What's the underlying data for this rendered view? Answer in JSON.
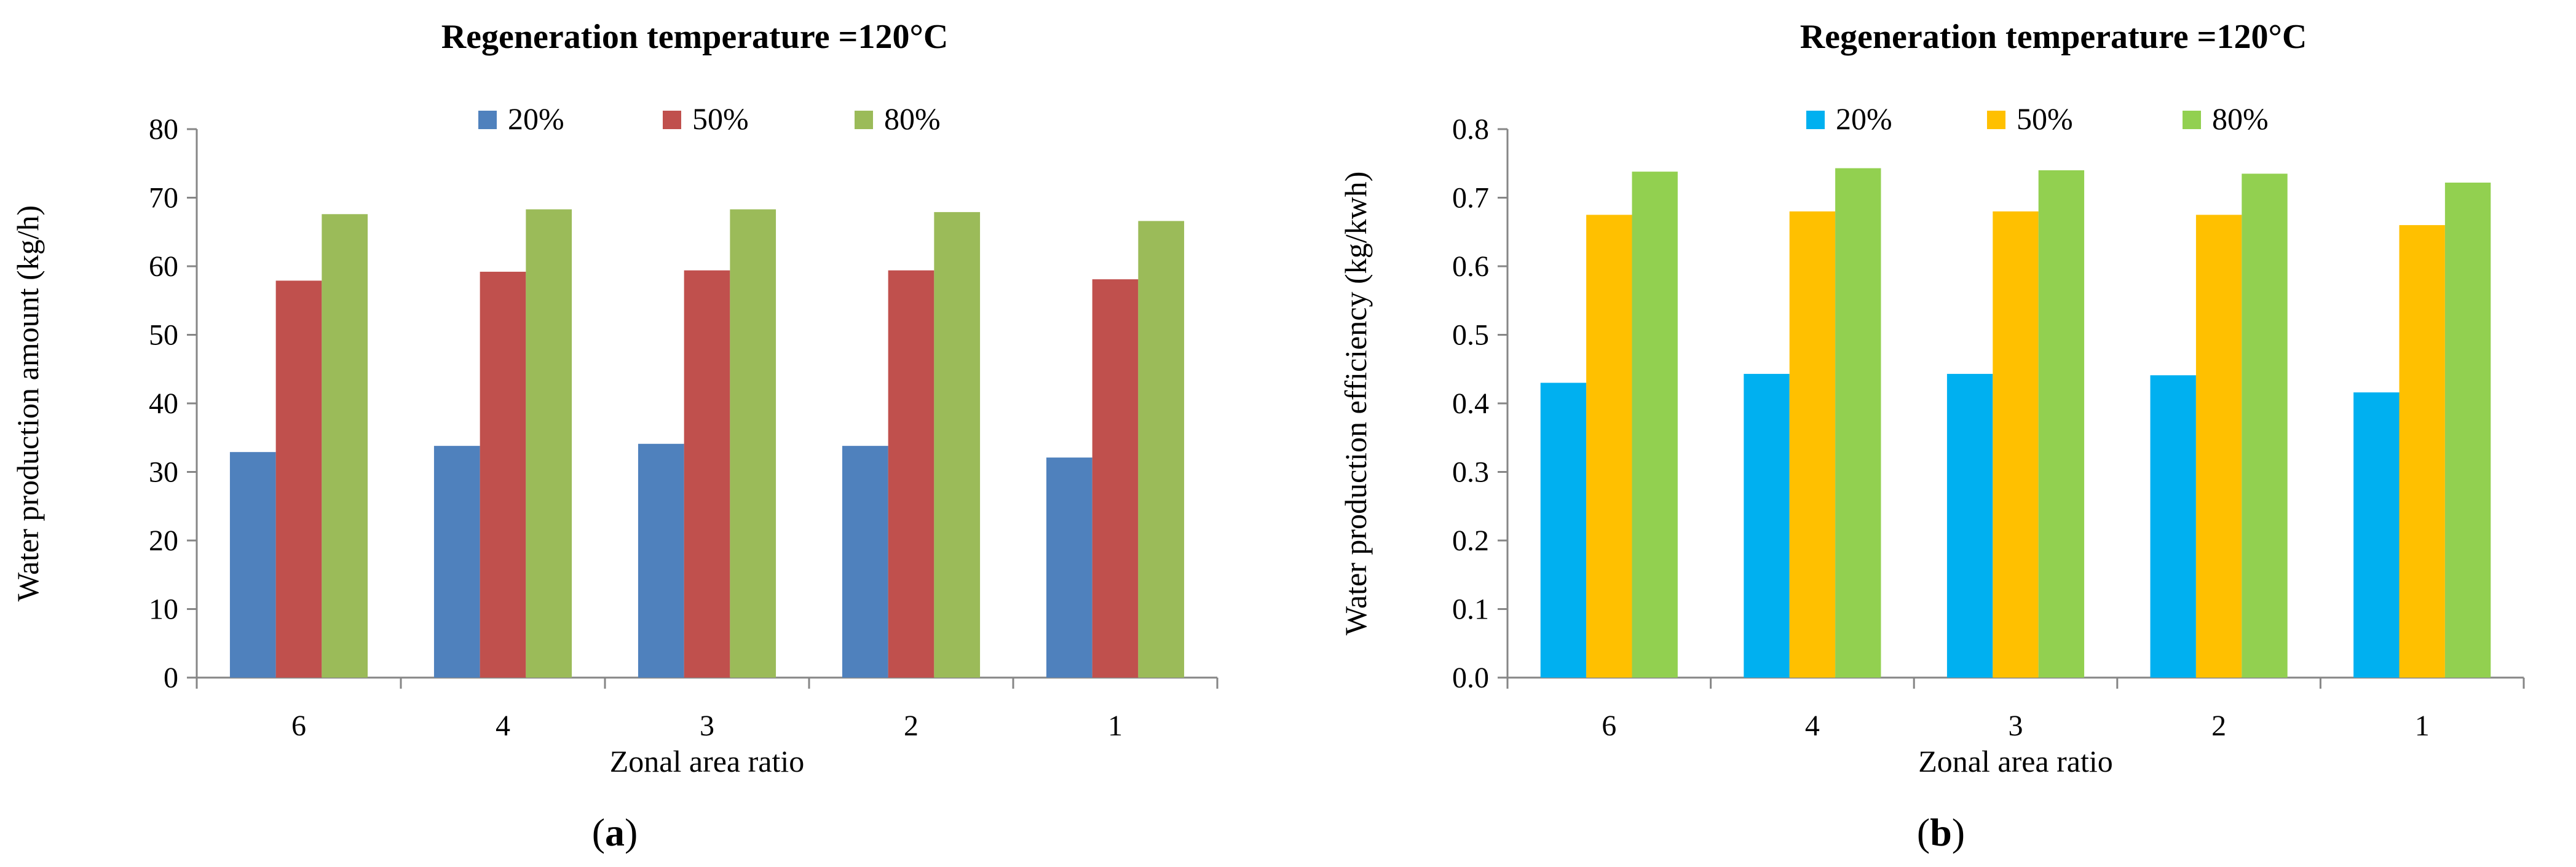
{
  "chart_data": [
    {
      "type": "bar",
      "panel_label": "a",
      "title": "Regeneration temperature =120°C",
      "xlabel": "Zonal area ratio",
      "ylabel": "Water production amount  (kg/h)",
      "categories": [
        "6",
        "4",
        "3",
        "2",
        "1"
      ],
      "ylim": [
        0,
        80
      ],
      "ytick_step": 10,
      "ytick_decimals": 0,
      "legend_position": "top-center",
      "grid": false,
      "series": [
        {
          "name": "20%",
          "color": "#4f81bd",
          "values": [
            32.9,
            33.8,
            34.1,
            33.8,
            32.1
          ]
        },
        {
          "name": "50%",
          "color": "#c0504d",
          "values": [
            57.9,
            59.2,
            59.4,
            59.4,
            58.1
          ]
        },
        {
          "name": "80%",
          "color": "#9bbb59",
          "values": [
            67.6,
            68.3,
            68.3,
            67.9,
            66.6
          ]
        }
      ]
    },
    {
      "type": "bar",
      "panel_label": "b",
      "title": "Regeneration temperature =120°C",
      "xlabel": "Zonal area ratio",
      "ylabel": "Water production efficiency   (kg/kwh)",
      "categories": [
        "6",
        "4",
        "3",
        "2",
        "1"
      ],
      "ylim": [
        0,
        0.8
      ],
      "ytick_step": 0.1,
      "ytick_decimals": 1,
      "legend_position": "top-center",
      "grid": false,
      "series": [
        {
          "name": "20%",
          "color": "#00b0f0",
          "values": [
            0.43,
            0.443,
            0.443,
            0.441,
            0.416
          ]
        },
        {
          "name": "50%",
          "color": "#ffc000",
          "values": [
            0.675,
            0.68,
            0.68,
            0.675,
            0.66
          ]
        },
        {
          "name": "80%",
          "color": "#92d050",
          "values": [
            0.738,
            0.743,
            0.74,
            0.735,
            0.722
          ]
        }
      ]
    }
  ]
}
